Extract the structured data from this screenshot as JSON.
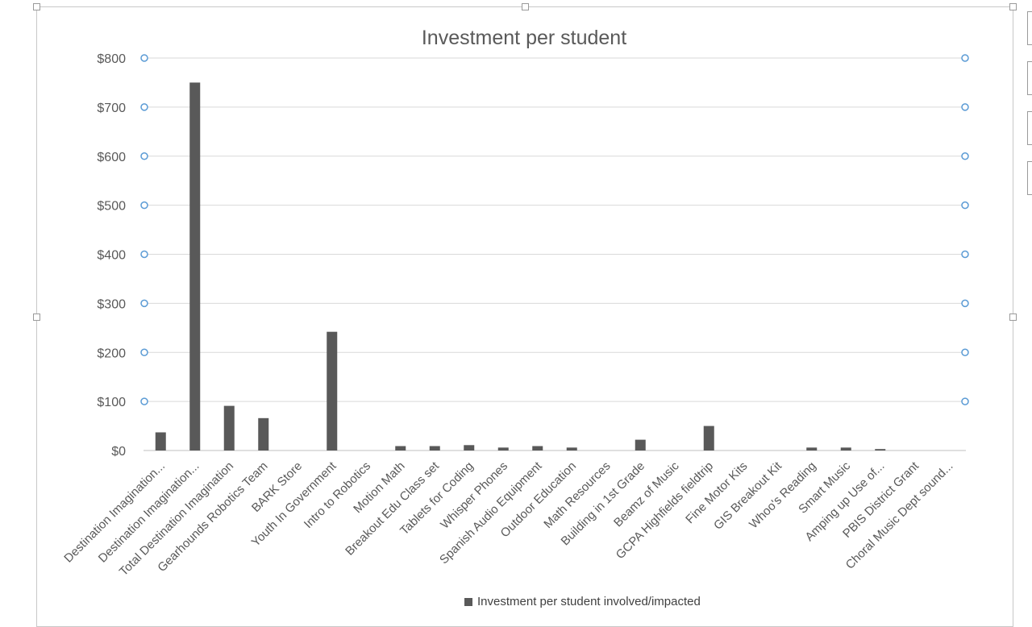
{
  "chart_data": {
    "type": "bar",
    "title": "Investment per student",
    "xlabel": "",
    "ylabel": "",
    "ylim": [
      0,
      800
    ],
    "ytick_step": 100,
    "ytick_format": "$",
    "grid": true,
    "legend_position": "bottom",
    "bar_color": "#595959",
    "categories": [
      "Destination Imagination...",
      "Destination Imagination...",
      "Total Destination Imagination",
      "Gearhounds Robotics Team",
      "BARK Store",
      "Youth In Government",
      "Intro to Robotics",
      "Motion Math",
      "Breakout Edu Class set",
      "Tablets for Coding",
      "Whisper Phones",
      "Spanish Audio Equipment",
      "Outdoor Education",
      "Math Resources",
      "Building in 1st Grade",
      "Beamz of Music",
      "GCPA Highfields fieldtrip",
      "Fine Motor Kits",
      "GIS Breakout Kit",
      "Whoo's Reading",
      "Smart Music",
      "Amping up Use of...",
      "PBIS District Grant",
      "Choral Music Dept sound..."
    ],
    "series": [
      {
        "name": "Investment per student involved/impacted",
        "values": [
          37,
          750,
          91,
          66,
          0,
          242,
          0,
          9,
          9,
          11,
          6,
          9,
          6,
          0,
          22,
          0,
          50,
          0,
          0,
          6,
          6,
          3,
          0,
          0
        ]
      }
    ]
  }
}
